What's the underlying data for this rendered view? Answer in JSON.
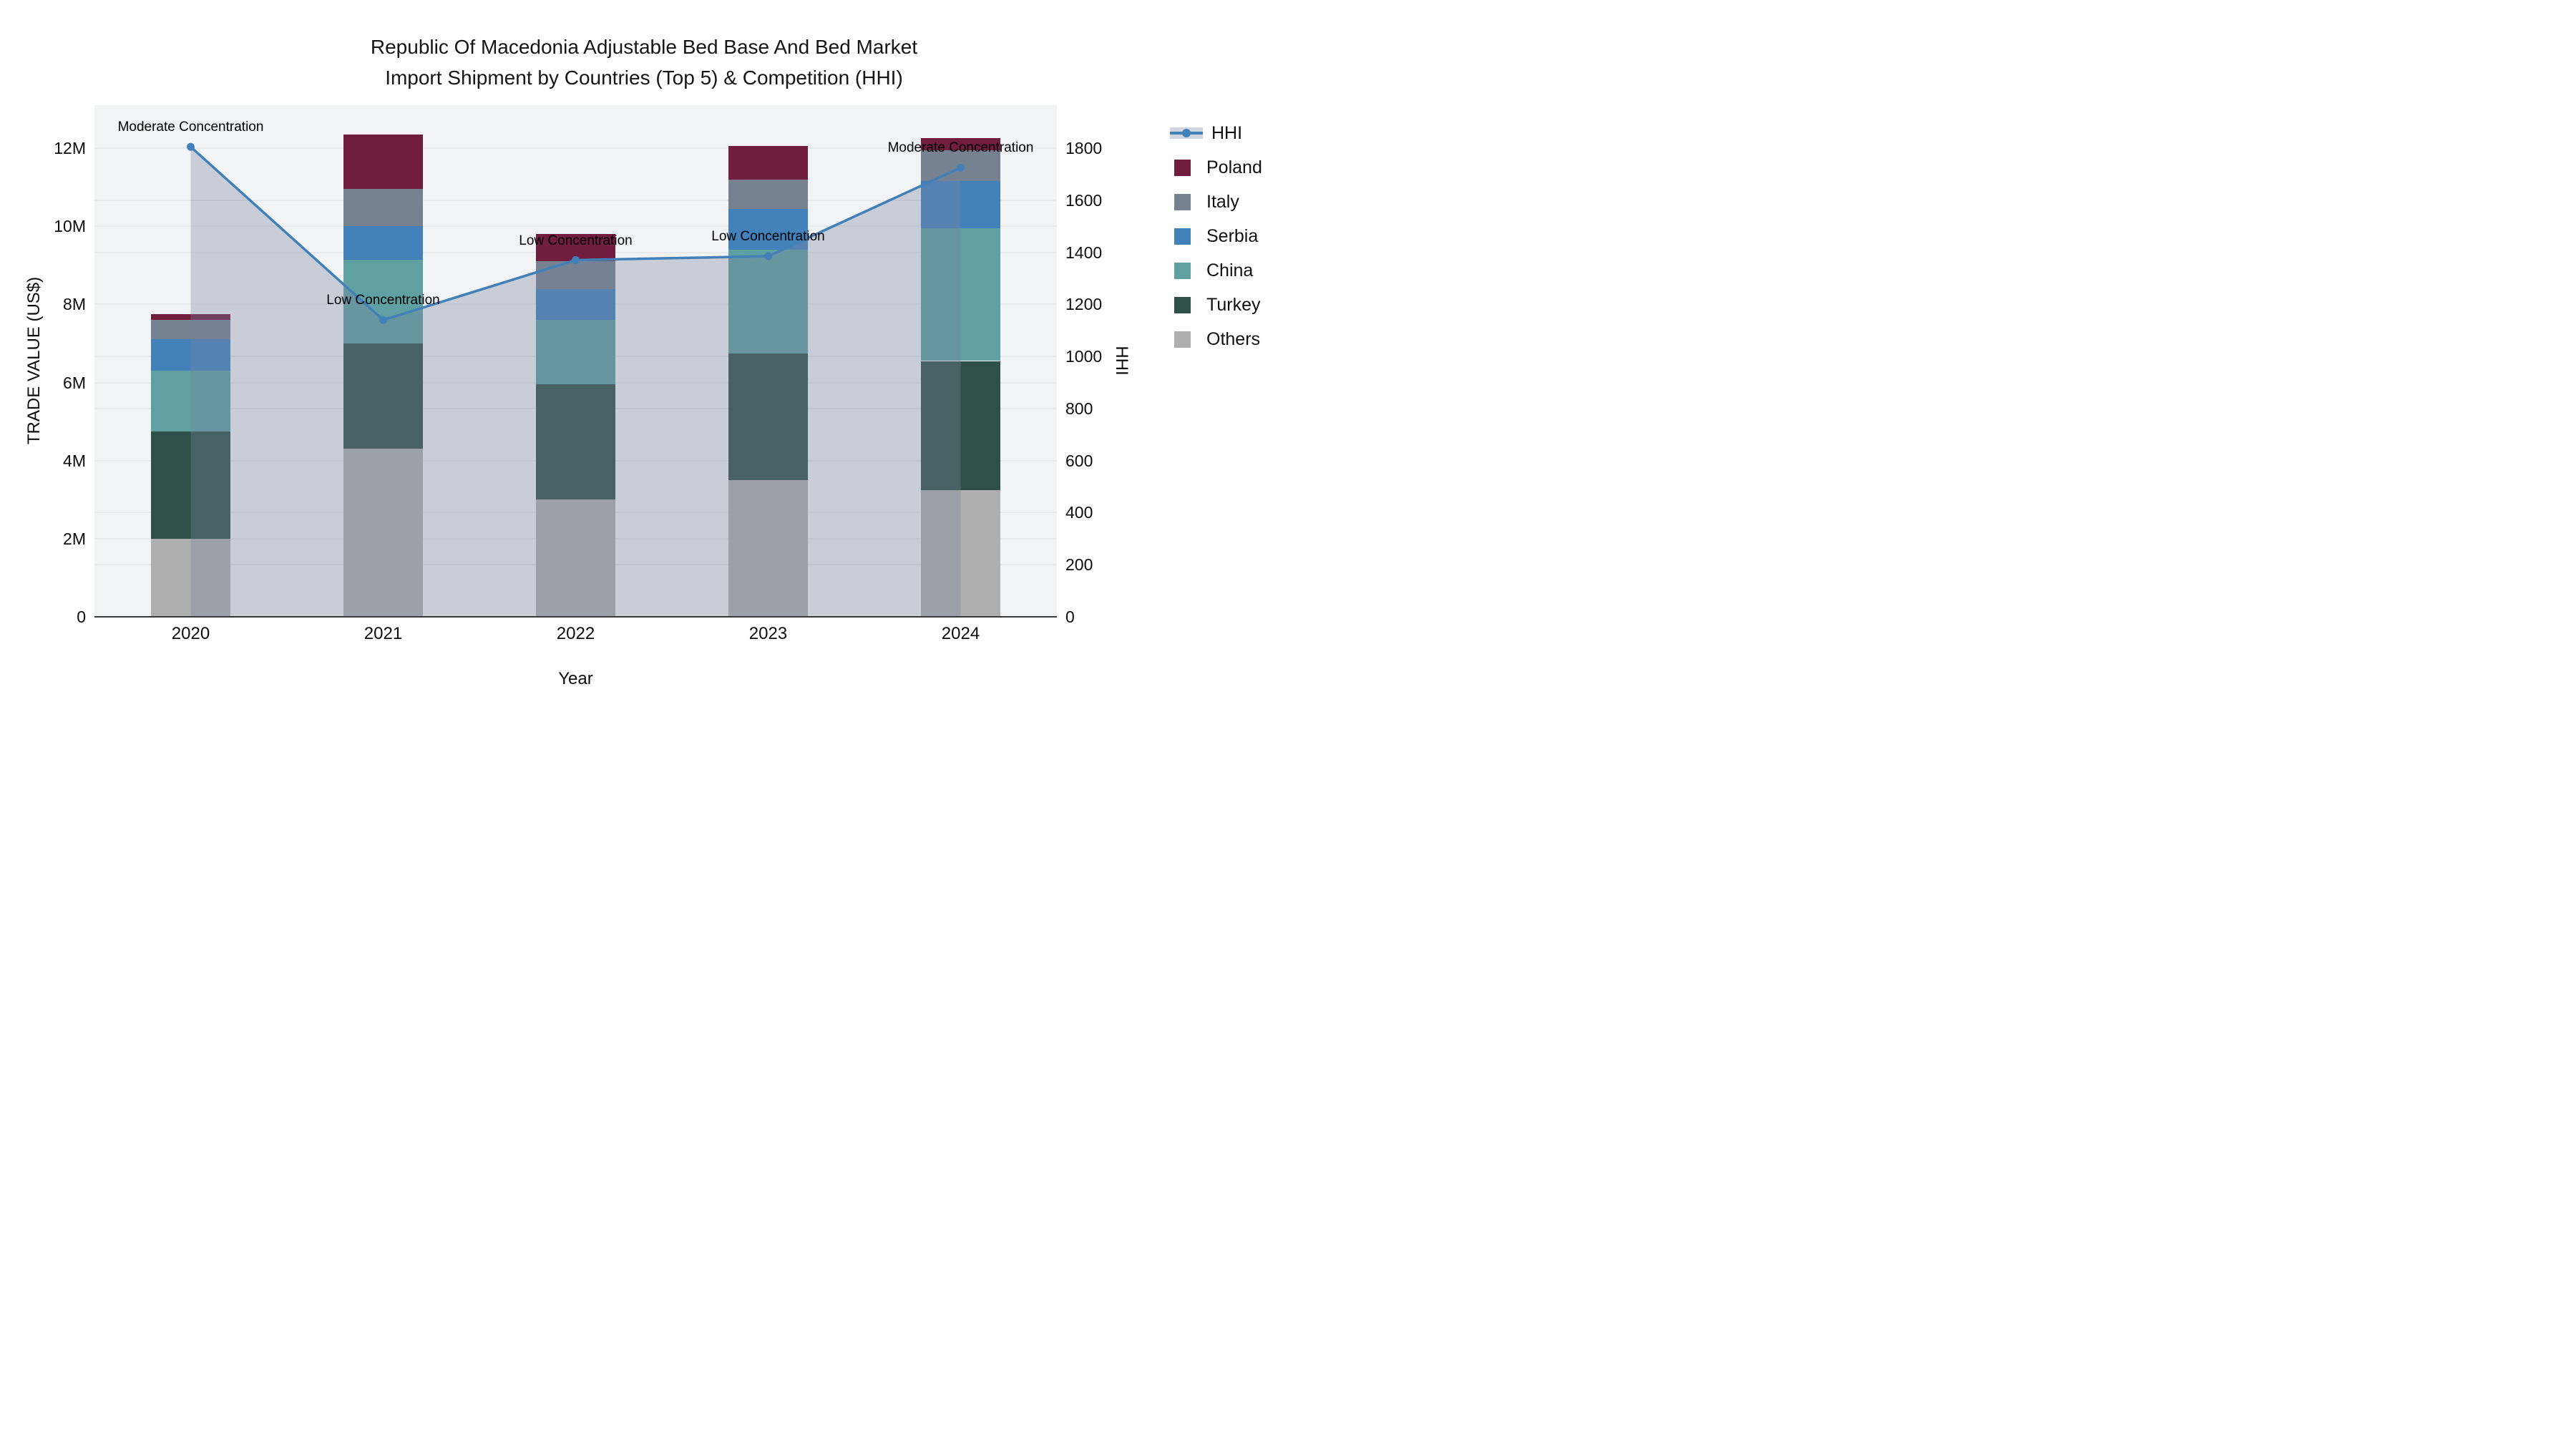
{
  "title": {
    "line1": "Republic Of Macedonia Adjustable Bed Base And Bed Market",
    "line2": "Import Shipment by Countries (Top 5) & Competition (HHI)"
  },
  "axes": {
    "y_left": {
      "title": "TRADE VALUE (US$)",
      "tick_labels": [
        "0",
        "2M",
        "4M",
        "6M",
        "8M",
        "10M",
        "12M"
      ],
      "tick_values": [
        0,
        2,
        4,
        6,
        8,
        10,
        12
      ],
      "range": [
        0,
        13.1
      ]
    },
    "y_right": {
      "title": "HHI",
      "tick_labels": [
        "0",
        "200",
        "400",
        "600",
        "800",
        "1000",
        "1200",
        "1400",
        "1600",
        "1800"
      ],
      "tick_values": [
        0,
        200,
        400,
        600,
        800,
        1000,
        1200,
        1400,
        1600,
        1800
      ],
      "range": [
        0,
        1965
      ]
    },
    "x": {
      "title": "Year",
      "categories": [
        "2020",
        "2021",
        "2022",
        "2023",
        "2024"
      ]
    }
  },
  "legend": {
    "position": "top-right",
    "items": [
      {
        "label": "HHI",
        "type": "line",
        "color": "#4180B8"
      },
      {
        "label": "Poland",
        "type": "square",
        "color": "#701D3F"
      },
      {
        "label": "Italy",
        "type": "square",
        "color": "#76828F"
      },
      {
        "label": "Serbia",
        "type": "square",
        "color": "#4381BB"
      },
      {
        "label": "China",
        "type": "square",
        "color": "#5FA0A2"
      },
      {
        "label": "Turkey",
        "type": "square",
        "color": "#2E5048"
      },
      {
        "label": "Others",
        "type": "square",
        "color": "#AFAFAF"
      }
    ]
  },
  "colors": {
    "plot_bg": "#F2F3F4",
    "grid": "#E7E9EC",
    "axis_line": "#3a3a3a",
    "hhi_line": "#4180B8",
    "area_fill": "rgba(119,133,158,0.34)"
  },
  "chart_data": [
    {
      "type": "bar",
      "stacked": true,
      "title": "Import shipment trade value by country (stacked, US$ millions)",
      "categories": [
        "2020",
        "2021",
        "2022",
        "2023",
        "2024"
      ],
      "unit": "M US$",
      "ylabel": "TRADE VALUE (US$)",
      "ylim": [
        0,
        13.1
      ],
      "grid": true,
      "series": [
        {
          "name": "Others",
          "color": "#AFAFAF",
          "values": [
            2.0,
            4.3,
            3.0,
            3.5,
            3.25
          ]
        },
        {
          "name": "Turkey",
          "color": "#2E5048",
          "values": [
            2.75,
            2.7,
            2.95,
            3.25,
            3.3
          ]
        },
        {
          "name": "China",
          "color": "#5FA0A2",
          "values": [
            1.55,
            2.15,
            1.65,
            2.65,
            3.4
          ]
        },
        {
          "name": "Serbia",
          "color": "#4381BB",
          "values": [
            0.8,
            0.85,
            0.8,
            1.05,
            1.2
          ]
        },
        {
          "name": "Italy",
          "color": "#76828F",
          "values": [
            0.5,
            0.95,
            0.7,
            0.75,
            0.8
          ]
        },
        {
          "name": "Poland",
          "color": "#701D3F",
          "values": [
            0.15,
            1.4,
            0.7,
            0.85,
            0.3
          ]
        }
      ],
      "totals": [
        7.75,
        12.35,
        9.8,
        12.05,
        12.25
      ]
    },
    {
      "type": "line",
      "name": "HHI",
      "axis": "right",
      "categories": [
        "2020",
        "2021",
        "2022",
        "2023",
        "2024"
      ],
      "values": [
        1805,
        1140,
        1370,
        1385,
        1725
      ],
      "ylabel": "HHI",
      "ylim": [
        0,
        1965
      ],
      "color": "#4180B8",
      "fill": "rgba(119,133,158,0.34)",
      "markers": true,
      "annotations": [
        {
          "x": "2020",
          "text": "Moderate Concentration"
        },
        {
          "x": "2021",
          "text": "Low Concentration"
        },
        {
          "x": "2022",
          "text": "Low Concentration"
        },
        {
          "x": "2023",
          "text": "Low Concentration"
        },
        {
          "x": "2024",
          "text": "Moderate Concentration"
        }
      ]
    }
  ]
}
